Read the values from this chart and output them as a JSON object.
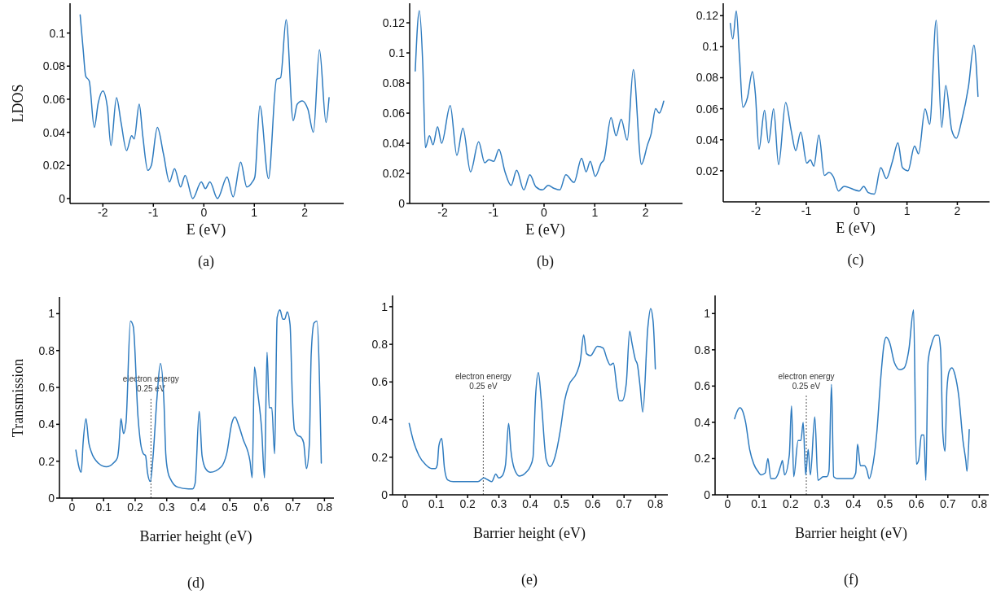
{
  "chart_data": [
    {
      "type": "line",
      "xlabel": "E (eV)",
      "ylabel": "LDOS",
      "annotations": [
        "(a)"
      ],
      "color": "#2e7bbf",
      "xlim": [
        -2.65,
        2.77
      ],
      "ylim": [
        -0.003,
        0.118
      ],
      "xticks": [
        -2,
        -1,
        0,
        1,
        2
      ],
      "yticks": [
        0,
        0.02,
        0.04,
        0.06,
        0.08,
        0.1
      ],
      "x": [
        -2.45,
        -2.39,
        -2.34,
        -2.27,
        -2.17,
        -2.09,
        -2.0,
        -1.91,
        -1.84,
        -1.73,
        -1.64,
        -1.53,
        -1.43,
        -1.38,
        -1.28,
        -1.21,
        -1.11,
        -1.04,
        -0.92,
        -0.8,
        -0.68,
        -0.58,
        -0.46,
        -0.37,
        -0.22,
        -0.05,
        0.03,
        0.12,
        0.27,
        0.46,
        0.58,
        0.73,
        0.85,
        0.96,
        1.01,
        1.11,
        1.28,
        1.44,
        1.52,
        1.63,
        1.77,
        1.85,
        1.95,
        2.06,
        2.17,
        2.29,
        2.42,
        2.48
      ],
      "values": [
        0.111,
        0.09,
        0.074,
        0.071,
        0.043,
        0.058,
        0.065,
        0.055,
        0.032,
        0.061,
        0.046,
        0.029,
        0.038,
        0.036,
        0.057,
        0.038,
        0.017,
        0.02,
        0.043,
        0.027,
        0.01,
        0.018,
        0.007,
        0.014,
        0.0,
        0.01,
        0.006,
        0.01,
        0.0,
        0.013,
        0.001,
        0.022,
        0.007,
        0.01,
        0.013,
        0.056,
        0.012,
        0.072,
        0.073,
        0.108,
        0.047,
        0.057,
        0.059,
        0.054,
        0.04,
        0.09,
        0.046,
        0.061
      ]
    },
    {
      "type": "line",
      "xlabel": "E (eV)",
      "annotations": [
        "(b)"
      ],
      "color": "#2e7bbf",
      "xlim": [
        -2.65,
        2.73
      ],
      "ylim": [
        0,
        0.133
      ],
      "xticks": [
        -2,
        -1,
        0,
        1,
        2
      ],
      "yticks": [
        0,
        0.02,
        0.04,
        0.06,
        0.08,
        0.1,
        0.12
      ],
      "x": [
        -2.54,
        -2.46,
        -2.39,
        -2.34,
        -2.26,
        -2.19,
        -2.1,
        -2.02,
        -1.85,
        -1.72,
        -1.6,
        -1.45,
        -1.29,
        -1.17,
        -1.09,
        -0.99,
        -0.89,
        -0.77,
        -0.65,
        -0.54,
        -0.4,
        -0.28,
        -0.16,
        -0.03,
        0.08,
        0.2,
        0.31,
        0.43,
        0.59,
        0.74,
        0.83,
        0.91,
        1.01,
        1.13,
        1.18,
        1.32,
        1.42,
        1.52,
        1.64,
        1.76,
        1.92,
        2.04,
        2.11,
        2.2,
        2.27,
        2.36
      ],
      "values": [
        0.088,
        0.128,
        0.091,
        0.037,
        0.045,
        0.039,
        0.051,
        0.04,
        0.065,
        0.032,
        0.05,
        0.021,
        0.041,
        0.027,
        0.029,
        0.028,
        0.036,
        0.021,
        0.012,
        0.022,
        0.009,
        0.019,
        0.011,
        0.009,
        0.012,
        0.01,
        0.009,
        0.019,
        0.014,
        0.03,
        0.021,
        0.028,
        0.018,
        0.027,
        0.029,
        0.057,
        0.045,
        0.056,
        0.042,
        0.089,
        0.026,
        0.039,
        0.046,
        0.063,
        0.06,
        0.068
      ]
    },
    {
      "type": "line",
      "xlabel": "E (eV)",
      "annotations": [
        "(c)"
      ],
      "color": "#2e7bbf",
      "xlim": [
        -2.65,
        2.64
      ],
      "ylim": [
        0,
        0.128
      ],
      "xticks": [
        -2,
        -1,
        0,
        1,
        2
      ],
      "yticks": [
        0.02,
        0.04,
        0.06,
        0.08,
        0.1,
        0.12
      ],
      "x": [
        -2.51,
        -2.46,
        -2.39,
        -2.33,
        -2.26,
        -2.17,
        -2.07,
        -2.01,
        -1.94,
        -1.83,
        -1.75,
        -1.65,
        -1.55,
        -1.41,
        -1.3,
        -1.21,
        -1.11,
        -0.99,
        -0.92,
        -0.85,
        -0.75,
        -0.64,
        -0.55,
        -0.46,
        -0.36,
        -0.25,
        0.05,
        0.14,
        0.23,
        0.35,
        0.48,
        0.59,
        0.71,
        0.82,
        0.91,
        1.02,
        1.15,
        1.23,
        1.36,
        1.45,
        1.58,
        1.69,
        1.77,
        1.89,
        1.98,
        2.09,
        2.22,
        2.33,
        2.41
      ],
      "values": [
        0.115,
        0.105,
        0.123,
        0.095,
        0.061,
        0.067,
        0.084,
        0.069,
        0.034,
        0.059,
        0.038,
        0.06,
        0.024,
        0.064,
        0.046,
        0.033,
        0.045,
        0.025,
        0.027,
        0.023,
        0.043,
        0.017,
        0.019,
        0.016,
        0.007,
        0.01,
        0.007,
        0.01,
        0.006,
        0.005,
        0.022,
        0.015,
        0.026,
        0.038,
        0.022,
        0.02,
        0.036,
        0.031,
        0.06,
        0.05,
        0.117,
        0.048,
        0.075,
        0.046,
        0.041,
        0.053,
        0.074,
        0.101,
        0.068
      ]
    },
    {
      "type": "line",
      "xlabel": "Barrier height (eV)",
      "ylabel": "Transmission",
      "annotations": [
        "(d)"
      ],
      "color": "#2e7bbf",
      "xlim": [
        -0.04,
        0.83
      ],
      "ylim": [
        0,
        1.09
      ],
      "xticks": [
        0,
        0.1,
        0.2,
        0.3,
        0.4,
        0.5,
        0.6,
        0.7,
        0.8
      ],
      "yticks": [
        0,
        0.2,
        0.4,
        0.6,
        0.8,
        1
      ],
      "ref_lines": [
        {
          "axis": "x",
          "value": 0.25,
          "label": "electron energy\n0.25 eV",
          "line_style": "dotted"
        }
      ],
      "x": [
        0.012,
        0.029,
        0.035,
        0.044,
        0.053,
        0.061,
        0.083,
        0.109,
        0.131,
        0.144,
        0.148,
        0.155,
        0.163,
        0.171,
        0.185,
        0.194,
        0.209,
        0.217,
        0.226,
        0.233,
        0.239,
        0.248,
        0.256,
        0.269,
        0.28,
        0.291,
        0.297,
        0.304,
        0.313,
        0.334,
        0.369,
        0.382,
        0.39,
        0.403,
        0.412,
        0.423,
        0.438,
        0.473,
        0.49,
        0.507,
        0.516,
        0.529,
        0.542,
        0.564,
        0.571,
        0.578,
        0.587,
        0.601,
        0.61,
        0.618,
        0.625,
        0.633,
        0.642,
        0.65,
        0.659,
        0.668,
        0.674,
        0.682,
        0.691,
        0.698,
        0.705,
        0.715,
        0.726,
        0.734,
        0.743,
        0.752,
        0.758,
        0.767,
        0.776,
        0.79
      ],
      "values": [
        0.26,
        0.14,
        0.3,
        0.43,
        0.3,
        0.25,
        0.19,
        0.17,
        0.19,
        0.22,
        0.27,
        0.43,
        0.35,
        0.41,
        0.96,
        0.93,
        0.44,
        0.3,
        0.24,
        0.23,
        0.14,
        0.09,
        0.21,
        0.54,
        0.73,
        0.53,
        0.24,
        0.14,
        0.1,
        0.06,
        0.05,
        0.05,
        0.08,
        0.47,
        0.23,
        0.16,
        0.14,
        0.17,
        0.24,
        0.41,
        0.44,
        0.39,
        0.32,
        0.2,
        0.11,
        0.71,
        0.59,
        0.37,
        0.11,
        0.79,
        0.49,
        0.49,
        0.24,
        0.98,
        1.02,
        0.97,
        0.97,
        1.01,
        0.94,
        0.56,
        0.37,
        0.34,
        0.33,
        0.3,
        0.16,
        0.29,
        0.78,
        0.95,
        0.96,
        0.19
      ]
    },
    {
      "type": "line",
      "xlabel": "Barrier height (eV)",
      "annotations": [
        "(e)"
      ],
      "color": "#2e7bbf",
      "xlim": [
        -0.04,
        0.84
      ],
      "ylim": [
        0,
        1.06
      ],
      "xticks": [
        0,
        0.1,
        0.2,
        0.3,
        0.4,
        0.5,
        0.6,
        0.7,
        0.8
      ],
      "yticks": [
        0,
        0.2,
        0.4,
        0.6,
        0.8,
        1
      ],
      "ref_lines": [
        {
          "axis": "x",
          "value": 0.25,
          "label": "electron energy\n0.25 eV",
          "line_style": "dotted"
        }
      ],
      "x": [
        0.013,
        0.026,
        0.044,
        0.066,
        0.085,
        0.097,
        0.103,
        0.108,
        0.117,
        0.126,
        0.136,
        0.154,
        0.189,
        0.202,
        0.211,
        0.233,
        0.252,
        0.264,
        0.277,
        0.29,
        0.299,
        0.31,
        0.321,
        0.331,
        0.338,
        0.349,
        0.366,
        0.387,
        0.4,
        0.409,
        0.417,
        0.426,
        0.435,
        0.451,
        0.464,
        0.479,
        0.496,
        0.51,
        0.523,
        0.549,
        0.56,
        0.571,
        0.58,
        0.593,
        0.615,
        0.633,
        0.646,
        0.656,
        0.666,
        0.677,
        0.685,
        0.694,
        0.707,
        0.718,
        0.725,
        0.736,
        0.743,
        0.751,
        0.76,
        0.776,
        0.785,
        0.793,
        0.8
      ],
      "values": [
        0.38,
        0.29,
        0.21,
        0.16,
        0.14,
        0.14,
        0.16,
        0.26,
        0.3,
        0.14,
        0.08,
        0.07,
        0.07,
        0.07,
        0.07,
        0.07,
        0.09,
        0.08,
        0.07,
        0.11,
        0.09,
        0.1,
        0.16,
        0.38,
        0.24,
        0.14,
        0.1,
        0.12,
        0.15,
        0.2,
        0.52,
        0.65,
        0.51,
        0.19,
        0.15,
        0.2,
        0.34,
        0.5,
        0.58,
        0.65,
        0.71,
        0.85,
        0.75,
        0.74,
        0.79,
        0.78,
        0.72,
        0.69,
        0.7,
        0.57,
        0.5,
        0.5,
        0.59,
        0.87,
        0.81,
        0.72,
        0.69,
        0.58,
        0.44,
        0.89,
        0.99,
        0.92,
        0.67
      ]
    },
    {
      "type": "line",
      "xlabel": "Barrier height (eV)",
      "annotations": [
        "(f)"
      ],
      "color": "#2e7bbf",
      "xlim": [
        -0.04,
        0.83
      ],
      "ylim": [
        0,
        1.1
      ],
      "xticks": [
        0,
        0.1,
        0.2,
        0.3,
        0.4,
        0.5,
        0.6,
        0.7,
        0.8
      ],
      "yticks": [
        0,
        0.2,
        0.4,
        0.6,
        0.8,
        1
      ],
      "ref_lines": [
        {
          "axis": "x",
          "value": 0.25,
          "label": "electron energy\n0.25 eV",
          "line_style": "dotted"
        }
      ],
      "x": [
        0.022,
        0.03,
        0.039,
        0.048,
        0.057,
        0.07,
        0.083,
        0.096,
        0.106,
        0.119,
        0.128,
        0.137,
        0.15,
        0.159,
        0.17,
        0.174,
        0.181,
        0.196,
        0.203,
        0.21,
        0.224,
        0.233,
        0.24,
        0.248,
        0.256,
        0.263,
        0.277,
        0.287,
        0.304,
        0.315,
        0.322,
        0.33,
        0.337,
        0.348,
        0.396,
        0.407,
        0.413,
        0.422,
        0.435,
        0.442,
        0.45,
        0.459,
        0.474,
        0.487,
        0.497,
        0.504,
        0.515,
        0.53,
        0.548,
        0.561,
        0.576,
        0.591,
        0.6,
        0.607,
        0.616,
        0.624,
        0.63,
        0.637,
        0.648,
        0.661,
        0.67,
        0.677,
        0.684,
        0.691,
        0.697,
        0.704,
        0.713,
        0.723,
        0.735,
        0.748,
        0.757,
        0.761,
        0.768
      ],
      "values": [
        0.42,
        0.46,
        0.48,
        0.46,
        0.4,
        0.25,
        0.17,
        0.13,
        0.11,
        0.12,
        0.2,
        0.09,
        0.09,
        0.11,
        0.17,
        0.19,
        0.11,
        0.22,
        0.49,
        0.1,
        0.3,
        0.3,
        0.4,
        0.11,
        0.25,
        0.11,
        0.43,
        0.08,
        0.1,
        0.1,
        0.13,
        0.61,
        0.1,
        0.09,
        0.09,
        0.12,
        0.28,
        0.16,
        0.16,
        0.14,
        0.09,
        0.14,
        0.34,
        0.65,
        0.83,
        0.87,
        0.84,
        0.73,
        0.69,
        0.7,
        0.8,
        1.02,
        0.17,
        0.19,
        0.33,
        0.33,
        0.08,
        0.73,
        0.83,
        0.88,
        0.88,
        0.8,
        0.34,
        0.24,
        0.58,
        0.68,
        0.7,
        0.66,
        0.54,
        0.3,
        0.19,
        0.13,
        0.36
      ]
    }
  ]
}
